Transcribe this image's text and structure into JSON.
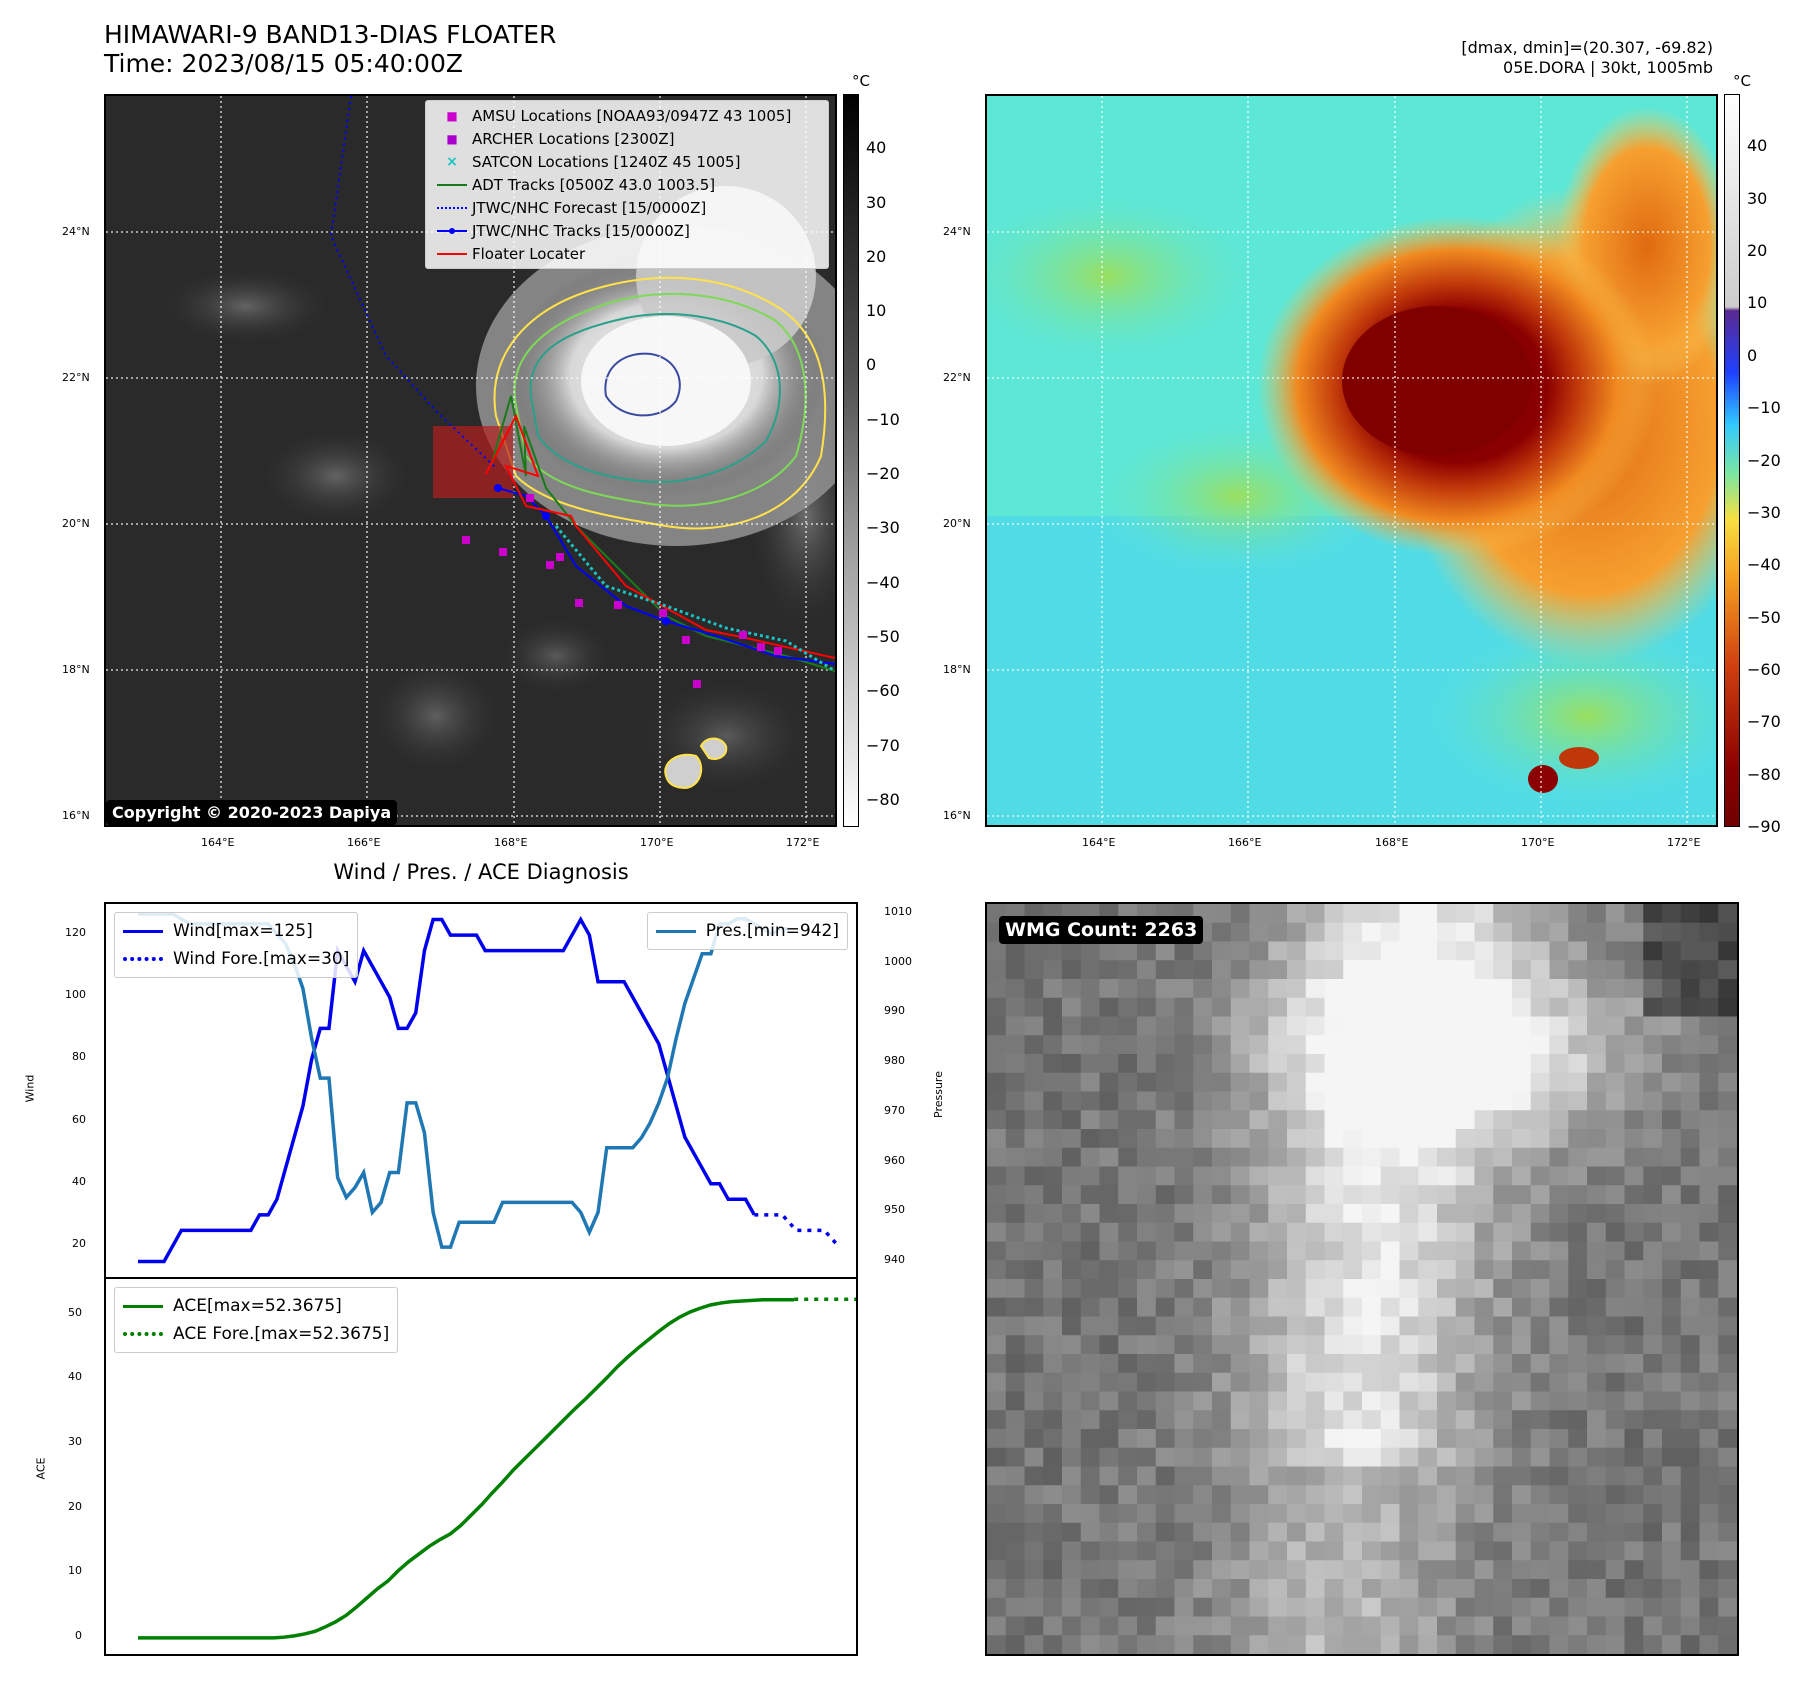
{
  "header": {
    "title_line1": "HIMAWARI-9 BAND13-DIAS FLOATER",
    "title_line2": "Time: 2023/08/15 05:40:00Z",
    "meta_line1": "[dmax, dmin]=(20.307, -69.82)",
    "meta_line2": "05E.DORA | 30kt, 1005mb"
  },
  "colorbar_unit": "°C",
  "copyright": "Copyright © 2020-2023 Dapiya",
  "wmg_label": "WMG Count: 2263",
  "map_ticks": {
    "lon": [
      "164°E",
      "166°E",
      "168°E",
      "170°E",
      "172°E"
    ],
    "lat": [
      "24°N",
      "22°N",
      "20°N",
      "18°N",
      "16°N"
    ]
  },
  "colorbar_left_ticks": [
    "40",
    "30",
    "20",
    "10",
    "0",
    "−10",
    "−20",
    "−30",
    "−40",
    "−50",
    "−60",
    "−70",
    "−80"
  ],
  "colorbar_right_ticks": [
    "40",
    "30",
    "20",
    "10",
    "0",
    "−10",
    "−20",
    "−30",
    "−40",
    "−50",
    "−60",
    "−70",
    "−80",
    "−90"
  ],
  "map_legend": [
    {
      "label": "AMSU Locations [NOAA93/0947Z 43 1005]",
      "marker": "square",
      "color": "#cc00cc"
    },
    {
      "label": "ARCHER Locations [2300Z]",
      "marker": "square",
      "color": "#aa00cc"
    },
    {
      "label": "SATCON Locations [1240Z 45 1005]",
      "marker": "x",
      "color": "#19c3c3"
    },
    {
      "label": "ADT Tracks [0500Z 43.0 1003.5]",
      "marker": "line",
      "color": "#1a7a1a"
    },
    {
      "label": "JTWC/NHC Forecast [15/0000Z]",
      "marker": "dotted",
      "color": "#0000ff"
    },
    {
      "label": "JTWC/NHC Tracks [15/0000Z]",
      "marker": "linedot",
      "color": "#0000ff"
    },
    {
      "label": "Floater Locater",
      "marker": "line",
      "color": "#ff0000"
    }
  ],
  "diagnosis": {
    "title": "Wind / Pres. / ACE Diagnosis",
    "wind_ylabel": "Wind",
    "pres_ylabel": "Pressure",
    "ace_ylabel": "ACE",
    "wind_ticks": [
      "120",
      "100",
      "80",
      "60",
      "40",
      "20"
    ],
    "pres_ticks": [
      "1010",
      "1000",
      "990",
      "980",
      "970",
      "960",
      "950",
      "940"
    ],
    "ace_ticks": [
      "50",
      "40",
      "30",
      "20",
      "10",
      "0"
    ],
    "legend_wind": "Wind[max=125]",
    "legend_wind_fore": "Wind Fore.[max=30]",
    "legend_pres": "Pres.[min=942]",
    "legend_ace": "ACE[max=52.3675]",
    "legend_ace_fore": "ACE Fore.[max=52.3675]"
  },
  "colors": {
    "wind": "#0000ee",
    "pressure": "#1f77b4",
    "ace": "#008000"
  },
  "chart_data": [
    {
      "type": "line",
      "title": "",
      "ylabel": "Wind",
      "ylim": [
        10,
        130
      ],
      "series": [
        {
          "name": "Wind[max=125]",
          "values": [
            15,
            15,
            15,
            15,
            20,
            25,
            25,
            25,
            25,
            25,
            25,
            25,
            25,
            25,
            30,
            30,
            35,
            45,
            55,
            65,
            80,
            90,
            90,
            115,
            110,
            105,
            115,
            110,
            105,
            100,
            90,
            90,
            95,
            115,
            125,
            125,
            120,
            120,
            120,
            120,
            115,
            115,
            115,
            115,
            115,
            115,
            115,
            115,
            115,
            115,
            120,
            125,
            120,
            105,
            105,
            105,
            105,
            100,
            95,
            90,
            85,
            75,
            65,
            55,
            50,
            45,
            40,
            40,
            35,
            35,
            35,
            30
          ]
        },
        {
          "name": "Wind Fore.[max=30]",
          "values": [
            30,
            30,
            30,
            25,
            25,
            25,
            20
          ]
        }
      ]
    },
    {
      "type": "line",
      "ylabel": "Pressure",
      "ylim": [
        937,
        1012
      ],
      "series": [
        {
          "name": "Pres.[min=942]",
          "values": [
            1010,
            1010,
            1010,
            1010,
            1010,
            1009,
            1008,
            1008,
            1008,
            1008,
            1008,
            1008,
            1008,
            1008,
            1008,
            1008,
            1006,
            1004,
            1000,
            995,
            985,
            977,
            977,
            957,
            953,
            955,
            958,
            950,
            952,
            958,
            958,
            972,
            972,
            966,
            950,
            943,
            943,
            948,
            948,
            948,
            948,
            948,
            952,
            952,
            952,
            952,
            952,
            952,
            952,
            952,
            952,
            950,
            946,
            950,
            963,
            963,
            963,
            963,
            965,
            968,
            972,
            977,
            985,
            992,
            997,
            1002,
            1002,
            1008,
            1008,
            1009,
            1009,
            1008,
            1007,
            1006,
            1007,
            1007
          ]
        }
      ]
    },
    {
      "type": "line",
      "ylabel": "ACE",
      "ylim": [
        -2.5,
        55.5
      ],
      "series": [
        {
          "name": "ACE[max=52.3675]",
          "values": [
            0,
            0,
            0,
            0,
            0,
            0,
            0,
            0,
            0,
            0,
            0,
            0,
            0,
            0,
            0.1,
            0.3,
            0.6,
            1.0,
            1.7,
            2.5,
            3.5,
            4.8,
            6.2,
            7.6,
            8.8,
            10.4,
            11.8,
            13.0,
            14.2,
            15.2,
            16.1,
            17.4,
            19.0,
            20.6,
            22.4,
            24.1,
            25.9,
            27.5,
            29.1,
            30.7,
            32.3,
            33.9,
            35.5,
            37.0,
            38.6,
            40.2,
            41.9,
            43.4,
            44.8,
            46.1,
            47.4,
            48.6,
            49.6,
            50.4,
            51.0,
            51.5,
            51.8,
            52.0,
            52.1,
            52.2,
            52.3,
            52.3,
            52.3,
            52.3
          ]
        },
        {
          "name": "ACE Fore.[max=52.3675]",
          "values": [
            52.3675,
            52.3675,
            52.3675,
            52.3675,
            52.3675,
            52.3675,
            52.3675
          ]
        }
      ]
    }
  ]
}
